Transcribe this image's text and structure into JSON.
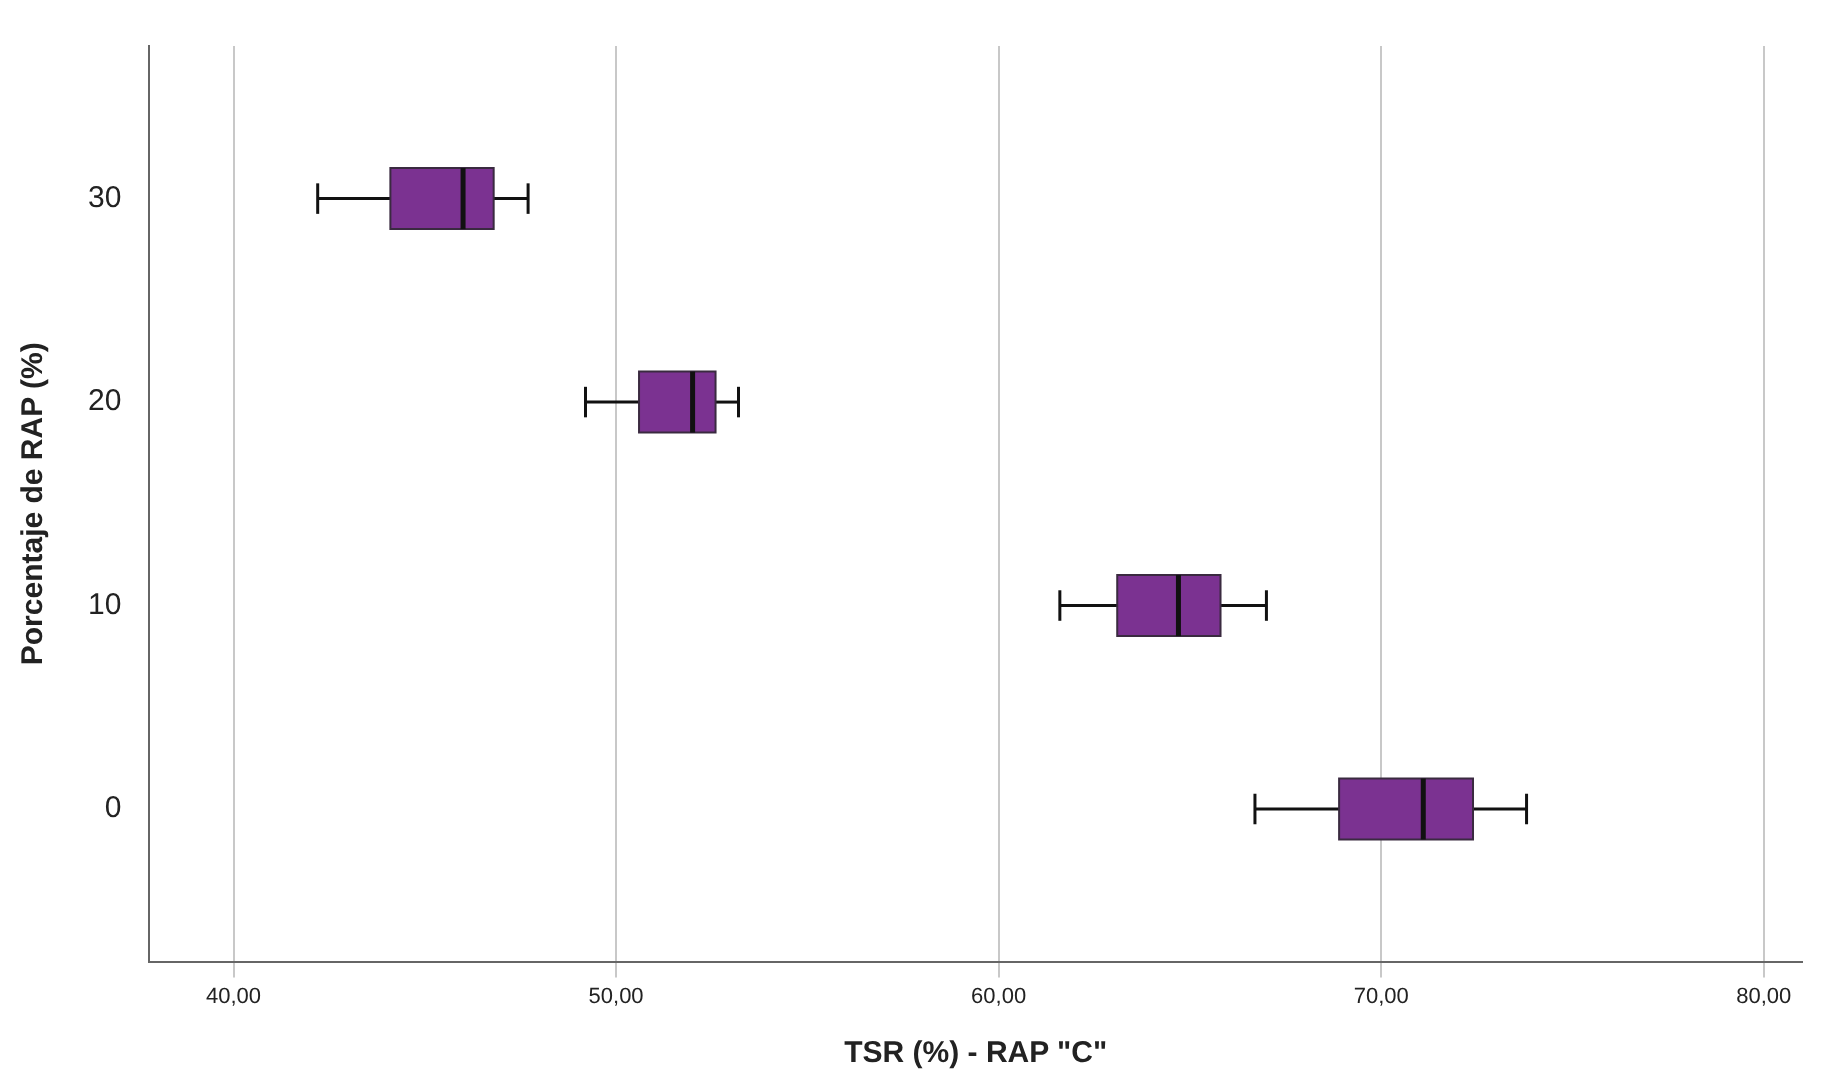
{
  "chart_data": {
    "type": "box",
    "orientation": "horizontal",
    "xlabel": "TSR (%) - RAP \"C\"",
    "ylabel": "Porcentaje de RAP (%)",
    "categories": [
      "30",
      "20",
      "10",
      "0"
    ],
    "color": "#7b3291",
    "boxes": [
      {
        "low": 42.2,
        "q1": 44.1,
        "median": 46.0,
        "q3": 46.8,
        "high": 47.7
      },
      {
        "low": 49.2,
        "q1": 50.6,
        "median": 52.0,
        "q3": 52.6,
        "high": 53.2
      },
      {
        "low": 61.6,
        "q1": 63.1,
        "median": 64.7,
        "q3": 65.8,
        "high": 67.0
      },
      {
        "low": 66.7,
        "q1": 68.9,
        "median": 71.1,
        "q3": 72.4,
        "high": 73.8
      }
    ],
    "xlim": [
      37.8,
      81.0
    ],
    "xticks": [
      {
        "value": 40,
        "label": "40,00"
      },
      {
        "value": 50,
        "label": "50,00"
      },
      {
        "value": 60,
        "label": "60,00"
      },
      {
        "value": 70,
        "label": "70,00"
      },
      {
        "value": 80,
        "label": "80,00"
      }
    ],
    "grid": "x",
    "legend": false
  }
}
